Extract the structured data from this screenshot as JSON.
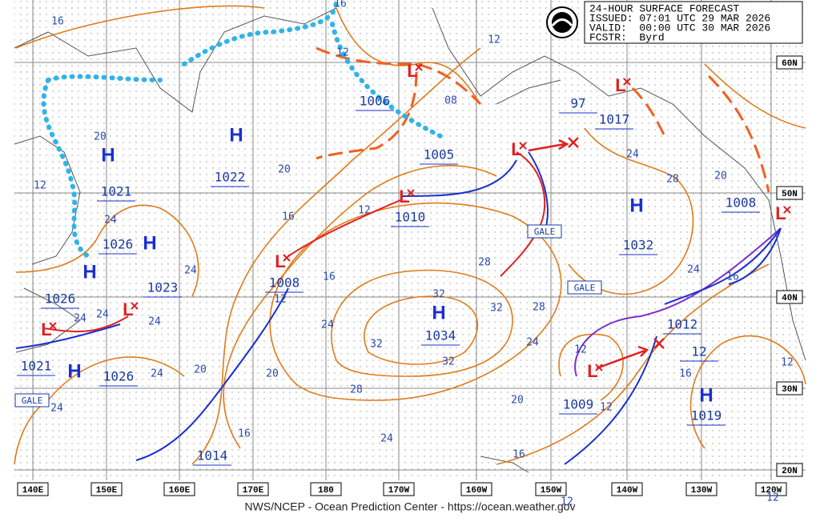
{
  "header": {
    "lines": [
      "24-HOUR SURFACE FORECAST",
      "ISSUED: 07:01 UTC 29 MAR 2026",
      "VALID:  00:00 UTC 30 MAR 2026",
      "FCSTR:  Byrd"
    ]
  },
  "longitude_labels": [
    "140E",
    "150E",
    "160E",
    "170E",
    "180",
    "170W",
    "160W",
    "150W",
    "140W",
    "130W",
    "120W"
  ],
  "latitude_labels": [
    "60N",
    "50N",
    "40N",
    "30N",
    "20N"
  ],
  "high_centers": [
    "H",
    "H",
    "H",
    "H",
    "H",
    "H",
    "H",
    "H"
  ],
  "low_centers": [
    "L",
    "L",
    "L",
    "L",
    "L",
    "L",
    "L",
    "L",
    "L"
  ],
  "pressures": [
    1006,
    1005,
    97,
    1017,
    1022,
    1021,
    1026,
    1023,
    1008,
    1010,
    1032,
    1008,
    1034,
    1026,
    1021,
    1026,
    1012,
    12,
    1009,
    1019,
    1014
  ],
  "isobar_labels": [
    "16",
    "12",
    "08",
    "12",
    "16",
    "20",
    "20",
    "24",
    "28",
    "20",
    "16",
    "12",
    "12",
    "24",
    "24",
    "12",
    "16",
    "28",
    "32",
    "32",
    "28",
    "16",
    "24",
    "24",
    "24",
    "24",
    "24",
    "32",
    "32",
    "24",
    "12",
    "28",
    "20",
    "20",
    "24",
    "24",
    "16",
    "20",
    "12",
    "16",
    "24",
    "16",
    "12",
    "12",
    "12"
  ],
  "gale_labels": [
    "GALE",
    "GALE",
    "GALE"
  ],
  "footer": "NWS/NCEP - Ocean Prediction Center - https://ocean.weather.gov"
}
